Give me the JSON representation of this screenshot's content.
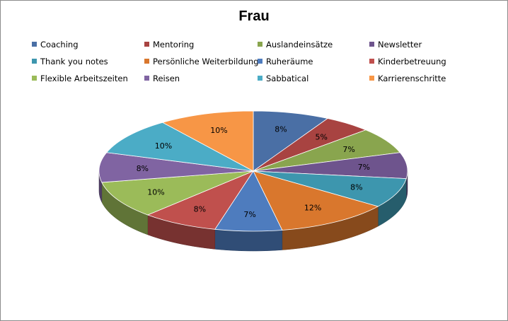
{
  "chart_data": {
    "type": "pie",
    "title": "Frau",
    "categories": [
      "Coaching",
      "Mentoring",
      "Auslandeinsätze",
      "Newsletter",
      "Thank you notes",
      "Persönliche Weiterbildung",
      "Ruheräume",
      "Kinderbetreuung",
      "Flexible Arbeitszeiten",
      "Reisen",
      "Sabbatical",
      "Karrierenschritte"
    ],
    "values": [
      8,
      5,
      7,
      7,
      8,
      12,
      7,
      8,
      10,
      8,
      10,
      10
    ],
    "value_labels": [
      "8%",
      "5%",
      "7%",
      "7%",
      "8%",
      "12%",
      "7%",
      "8%",
      "10%",
      "8%",
      "10%",
      "10%"
    ],
    "colors": [
      "#4a6fa5",
      "#a84341",
      "#89a54e",
      "#6e548d",
      "#3d96ae",
      "#d9772d",
      "#4e7cbe",
      "#c0504d",
      "#9bbb59",
      "#8064a2",
      "#4bacc6",
      "#f79646"
    ],
    "legend_position": "top",
    "style": "3d-pie"
  }
}
